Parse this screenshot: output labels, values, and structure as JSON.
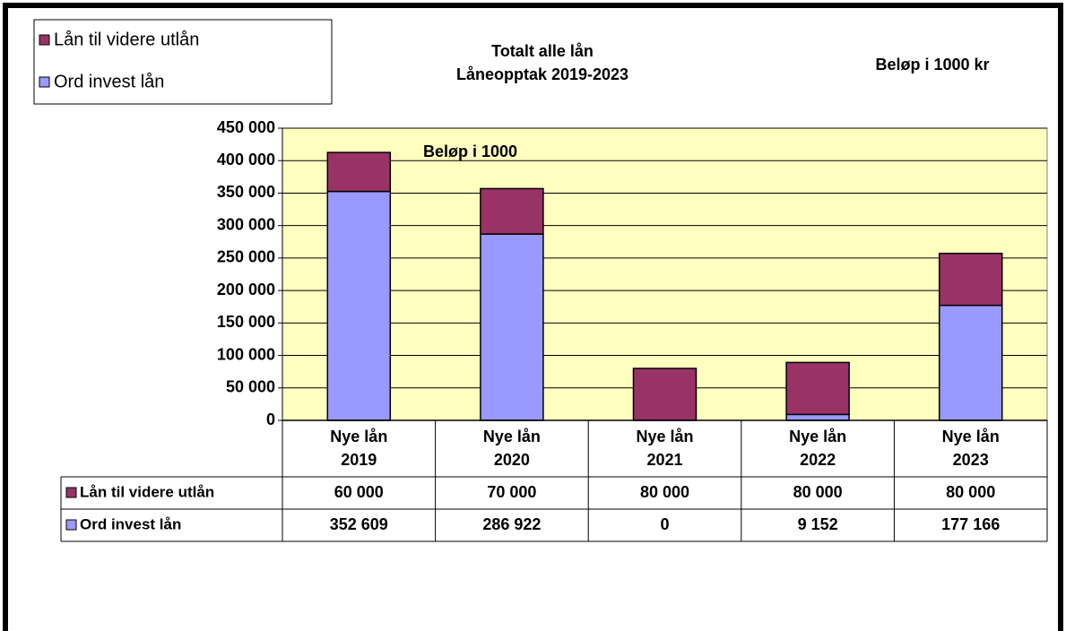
{
  "chart_data": {
    "type": "stacked_bar",
    "title": "Totalt alle lån",
    "subtitle": "Låneopptak 2019-2023",
    "unit_note": "Beløp i 1000 kr",
    "annotation": "Beløp i 1000",
    "categories": [
      "Nye lån 2019",
      "Nye lån 2020",
      "Nye lån 2021",
      "Nye lån 2022",
      "Nye lån 2023"
    ],
    "series": [
      {
        "name": "Lån til videre utlån",
        "color": "#993366",
        "values": [
          60000,
          70000,
          80000,
          80000,
          80000
        ],
        "value_labels": [
          "60 000",
          "70 000",
          "80 000",
          "80 000",
          "80 000"
        ]
      },
      {
        "name": "Ord invest lån",
        "color": "#9999ff",
        "values": [
          352609,
          286922,
          0,
          9152,
          177166
        ],
        "value_labels": [
          "352 609",
          "286 922",
          "0",
          "9 152",
          "177 166"
        ]
      }
    ],
    "ylim": [
      0,
      450000
    ],
    "yticks": [
      0,
      {
        "value": 50000,
        "label": "50 000"
      },
      {
        "value": 100000,
        "label": "100 000"
      },
      {
        "value": 150000,
        "label": "150 000"
      },
      {
        "value": 200000,
        "label": "200 000"
      },
      {
        "value": 250000,
        "label": "250 000"
      },
      {
        "value": 300000,
        "label": "300 000"
      },
      {
        "value": 350000,
        "label": "350 000"
      },
      {
        "value": 400000,
        "label": "400 000"
      },
      {
        "value": 450000,
        "label": "450 000"
      }
    ],
    "grid": true,
    "legend": "top-left",
    "plot_background": "#ffffc0"
  }
}
